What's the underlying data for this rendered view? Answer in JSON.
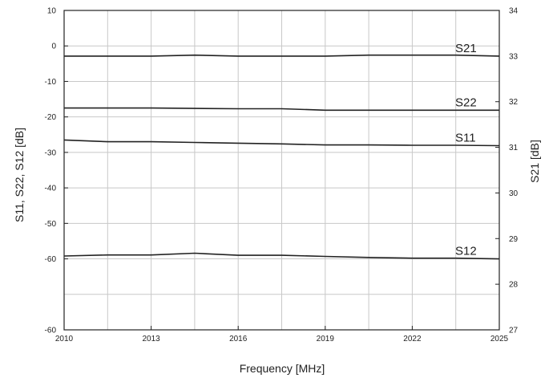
{
  "chart_data": {
    "type": "line",
    "title": "",
    "xlabel": "Frequency [MHz]",
    "ylabel": "S11, S22, S12 [dB]",
    "y2label": "S21 [dB]",
    "xlim": [
      2010,
      2025
    ],
    "ylim": [
      -80,
      10
    ],
    "y2lim": [
      27,
      34
    ],
    "grid": true,
    "x_ticks": [
      "2010",
      "2013",
      "2016",
      "2019",
      "2022",
      "2025"
    ],
    "y_ticks": [
      "10",
      "0",
      "-10",
      "-20",
      "-30",
      "-40",
      "-50",
      "-60"
    ],
    "y2_ticks": [
      "34",
      "33",
      "32",
      "31",
      "30",
      "29",
      "28",
      "27"
    ],
    "series": [
      {
        "name": "S21",
        "axis": "right",
        "x": [
          2010,
          2011.5,
          2013,
          2014.5,
          2016,
          2017.5,
          2019,
          2020.5,
          2022,
          2023.5,
          2025
        ],
        "values": [
          33.0,
          33.0,
          33.0,
          33.02,
          33.0,
          33.0,
          33.0,
          33.02,
          33.02,
          33.02,
          33.0
        ]
      },
      {
        "name": "S22",
        "axis": "left",
        "x": [
          2010,
          2011.5,
          2013,
          2014.5,
          2016,
          2017.5,
          2019,
          2020.5,
          2022,
          2023.5,
          2025
        ],
        "values": [
          -17.5,
          -17.5,
          -17.5,
          -17.6,
          -17.7,
          -17.7,
          -18.1,
          -18.1,
          -18.1,
          -18.1,
          -18.1
        ]
      },
      {
        "name": "S11",
        "axis": "left",
        "x": [
          2010,
          2011.5,
          2013,
          2014.5,
          2016,
          2017.5,
          2019,
          2020.5,
          2022,
          2023.5,
          2025
        ],
        "values": [
          -26.5,
          -27.0,
          -27.0,
          -27.2,
          -27.4,
          -27.6,
          -27.9,
          -27.9,
          -28.0,
          -28.0,
          -28.1
        ]
      },
      {
        "name": "S12",
        "axis": "left",
        "x": [
          2010,
          2011.5,
          2013,
          2014.5,
          2016,
          2017.5,
          2019,
          2020.5,
          2022,
          2023.5,
          2025
        ],
        "values": [
          -59.2,
          -58.9,
          -58.9,
          -58.4,
          -59.0,
          -59.0,
          -59.3,
          -59.6,
          -59.8,
          -59.8,
          -60.0
        ]
      }
    ]
  }
}
